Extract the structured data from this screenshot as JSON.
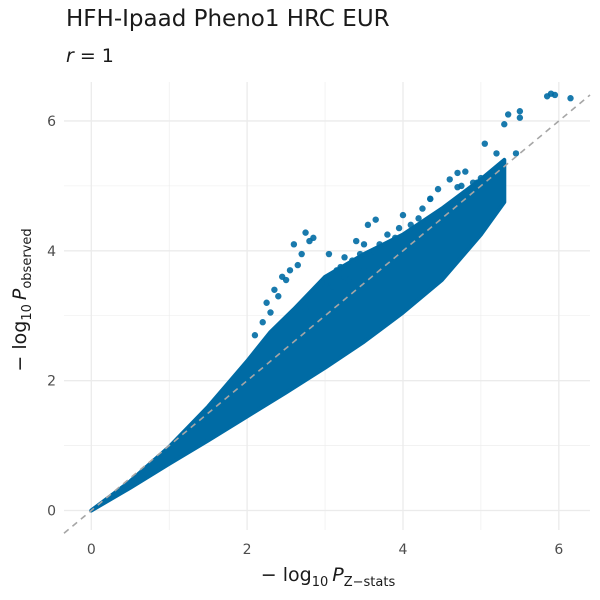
{
  "title": "HFH-Ipaad Pheno1 HRC EUR",
  "subtitle": {
    "var": "r",
    "rest": " = 1"
  },
  "x_label": {
    "prefix": "− log",
    "base": "10",
    "var": "P",
    "sub": "Z−stats"
  },
  "y_label": {
    "prefix": "− log",
    "base": "10",
    "var": "P",
    "sub": "observed"
  },
  "colors": {
    "points": "#006ba4",
    "reference_line": "#a6a6a6",
    "grid": "#ebebeb"
  },
  "chart_data": {
    "type": "scatter",
    "xlim": [
      -0.35,
      6.4
    ],
    "ylim": [
      -0.3,
      6.6
    ],
    "x_ticks": [
      0,
      2,
      4,
      6
    ],
    "y_ticks": [
      0,
      2,
      4,
      6
    ],
    "grid": true,
    "reference_line": {
      "slope": 1,
      "intercept": 0,
      "style": "dashed"
    },
    "cloud_upper": [
      [
        0,
        0
      ],
      [
        0.5,
        0.45
      ],
      [
        1.0,
        0.98
      ],
      [
        1.5,
        1.6
      ],
      [
        2.0,
        2.3
      ],
      [
        2.3,
        2.75
      ],
      [
        2.6,
        3.1
      ],
      [
        3.0,
        3.6
      ],
      [
        3.5,
        3.95
      ],
      [
        4.0,
        4.25
      ],
      [
        4.5,
        4.65
      ],
      [
        5.0,
        5.1
      ],
      [
        5.3,
        5.4
      ]
    ],
    "cloud_lower": [
      [
        0,
        0
      ],
      [
        0.5,
        0.35
      ],
      [
        1.0,
        0.72
      ],
      [
        1.5,
        1.08
      ],
      [
        2.0,
        1.45
      ],
      [
        2.5,
        1.82
      ],
      [
        3.0,
        2.2
      ],
      [
        3.5,
        2.6
      ],
      [
        4.0,
        3.05
      ],
      [
        4.5,
        3.55
      ],
      [
        5.0,
        4.25
      ],
      [
        5.3,
        4.75
      ]
    ],
    "points": [
      [
        6.15,
        6.35
      ],
      [
        5.95,
        6.4
      ],
      [
        5.9,
        6.42
      ],
      [
        5.85,
        6.38
      ],
      [
        5.5,
        6.15
      ],
      [
        5.5,
        6.05
      ],
      [
        5.35,
        6.1
      ],
      [
        5.3,
        5.95
      ],
      [
        5.2,
        5.5
      ],
      [
        5.05,
        5.65
      ],
      [
        5.0,
        5.12
      ],
      [
        4.95,
        5.05
      ],
      [
        4.8,
        5.22
      ],
      [
        4.7,
        4.98
      ],
      [
        4.7,
        5.2
      ],
      [
        4.6,
        5.1
      ],
      [
        4.45,
        4.95
      ],
      [
        4.35,
        4.8
      ],
      [
        4.25,
        4.65
      ],
      [
        4.2,
        4.5
      ],
      [
        4.1,
        4.4
      ],
      [
        4.0,
        4.55
      ],
      [
        3.95,
        4.35
      ],
      [
        3.9,
        4.2
      ],
      [
        3.8,
        4.25
      ],
      [
        3.7,
        4.1
      ],
      [
        3.65,
        4.48
      ],
      [
        3.6,
        3.9
      ],
      [
        3.55,
        4.4
      ],
      [
        3.5,
        4.1
      ],
      [
        3.45,
        3.95
      ],
      [
        3.4,
        4.15
      ],
      [
        3.35,
        3.85
      ],
      [
        3.3,
        3.55
      ],
      [
        3.25,
        3.9
      ],
      [
        3.2,
        3.75
      ],
      [
        3.15,
        3.7
      ],
      [
        3.1,
        3.45
      ],
      [
        3.05,
        3.95
      ],
      [
        3.0,
        3.48
      ],
      [
        2.95,
        3.5
      ],
      [
        2.85,
        4.2
      ],
      [
        2.8,
        4.15
      ],
      [
        2.75,
        4.28
      ],
      [
        2.7,
        3.95
      ],
      [
        2.65,
        3.78
      ],
      [
        2.6,
        4.1
      ],
      [
        2.55,
        3.7
      ],
      [
        2.5,
        3.55
      ],
      [
        2.45,
        3.6
      ],
      [
        2.4,
        3.3
      ],
      [
        2.35,
        3.4
      ],
      [
        2.3,
        3.05
      ],
      [
        2.25,
        3.2
      ],
      [
        2.2,
        2.9
      ],
      [
        2.1,
        2.7
      ],
      [
        4.35,
        4.8
      ],
      [
        4.5,
        4.6
      ],
      [
        4.75,
        5.0
      ],
      [
        4.9,
        5.05
      ],
      [
        5.45,
        5.5
      ],
      [
        3.85,
        3.95
      ],
      [
        4.05,
        4.0
      ],
      [
        3.25,
        3.6
      ],
      [
        2.75,
        3.1
      ],
      [
        3.5,
        3.7
      ]
    ]
  }
}
